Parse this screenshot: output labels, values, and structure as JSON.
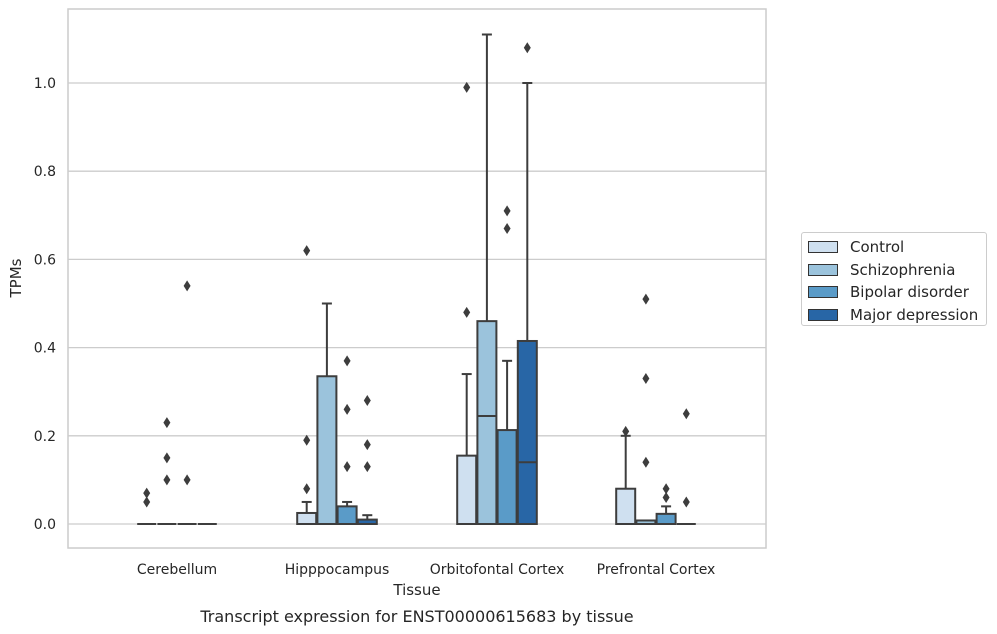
{
  "chart_data": {
    "type": "box",
    "xlabel": "Tissue",
    "ylabel": "TPMs",
    "caption": "Transcript expression for ENST00000615683 by tissue",
    "ylim": [
      -0.055,
      1.17
    ],
    "yticks": [
      0.0,
      0.2,
      0.4,
      0.6,
      0.8,
      1.0
    ],
    "ytick_labels": [
      "0.0",
      "0.2",
      "0.4",
      "0.6",
      "0.8",
      "1.0"
    ],
    "grid": true,
    "legend_position": "right",
    "categories": [
      "Cerebellum",
      "Hipppocampus",
      "Orbitofontal Cortex",
      "Prefrontal Cortex"
    ],
    "series": [
      {
        "name": "Control",
        "color": "#cfe0f0",
        "boxes": [
          {
            "min": 0,
            "q1": 0,
            "median": 0,
            "q3": 0,
            "max": 0,
            "outliers": [
              0.05,
              0.07
            ]
          },
          {
            "min": 0,
            "q1": 0,
            "median": 0,
            "q3": 0.025,
            "max": 0.05,
            "outliers": [
              0.08,
              0.19,
              0.62
            ]
          },
          {
            "min": 0,
            "q1": 0,
            "median": 0,
            "q3": 0.155,
            "max": 0.34,
            "outliers": [
              0.48,
              0.99
            ]
          },
          {
            "min": 0,
            "q1": 0,
            "median": 0,
            "q3": 0.08,
            "max": 0.2,
            "outliers": [
              0.21
            ]
          }
        ]
      },
      {
        "name": "Schizophrenia",
        "color": "#9bc3dc",
        "boxes": [
          {
            "min": 0,
            "q1": 0,
            "median": 0,
            "q3": 0,
            "max": 0,
            "outliers": [
              0.1,
              0.15,
              0.23
            ]
          },
          {
            "min": 0,
            "q1": 0,
            "median": 0,
            "q3": 0.335,
            "max": 0.5,
            "outliers": []
          },
          {
            "min": 0,
            "q1": 0,
            "median": 0.245,
            "q3": 0.46,
            "max": 1.11,
            "outliers": []
          },
          {
            "min": 0,
            "q1": 0,
            "median": 0,
            "q3": 0.008,
            "max": 0.008,
            "outliers": [
              0.14,
              0.33,
              0.51
            ]
          }
        ]
      },
      {
        "name": "Bipolar disorder",
        "color": "#5a9bc8",
        "boxes": [
          {
            "min": 0,
            "q1": 0,
            "median": 0,
            "q3": 0,
            "max": 0,
            "outliers": [
              0.1,
              0.54
            ]
          },
          {
            "min": 0,
            "q1": 0,
            "median": 0,
            "q3": 0.04,
            "max": 0.05,
            "outliers": [
              0.13,
              0.26,
              0.37
            ]
          },
          {
            "min": 0,
            "q1": 0,
            "median": 0,
            "q3": 0.213,
            "max": 0.37,
            "outliers": [
              0.67,
              0.71
            ]
          },
          {
            "min": 0,
            "q1": 0,
            "median": 0,
            "q3": 0.023,
            "max": 0.04,
            "outliers": [
              0.06,
              0.08
            ]
          }
        ]
      },
      {
        "name": "Major depression",
        "color": "#2866a6",
        "boxes": [
          {
            "min": 0,
            "q1": 0,
            "median": 0,
            "q3": 0,
            "max": 0,
            "outliers": []
          },
          {
            "min": 0,
            "q1": 0,
            "median": 0,
            "q3": 0.01,
            "max": 0.02,
            "outliers": [
              0.13,
              0.18,
              0.28
            ]
          },
          {
            "min": 0,
            "q1": 0,
            "median": 0.14,
            "q3": 0.415,
            "max": 1.0,
            "outliers": [
              1.08
            ]
          },
          {
            "min": 0,
            "q1": 0,
            "median": 0,
            "q3": 0,
            "max": 0,
            "outliers": [
              0.05,
              0.25
            ]
          }
        ]
      }
    ]
  }
}
